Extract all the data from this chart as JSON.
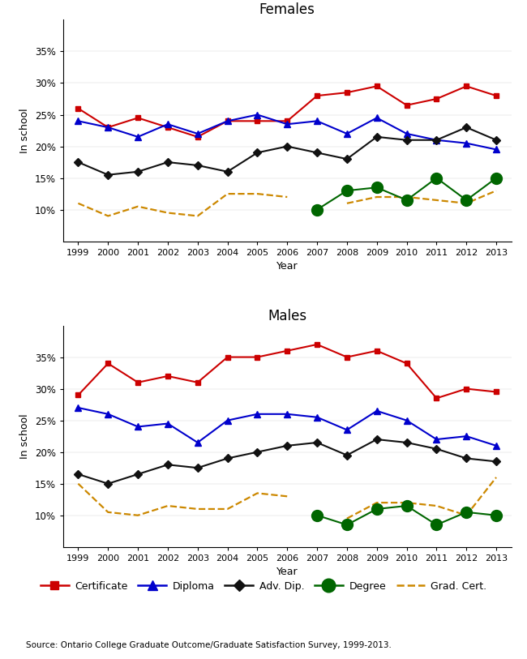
{
  "years": [
    1999,
    2000,
    2001,
    2002,
    2003,
    2004,
    2005,
    2006,
    2007,
    2008,
    2009,
    2010,
    2011,
    2012,
    2013
  ],
  "females": {
    "certificate": [
      26,
      23,
      24.5,
      23,
      21.5,
      24,
      24,
      24,
      28,
      28.5,
      29.5,
      26.5,
      27.5,
      29.5,
      28
    ],
    "diploma": [
      24,
      23,
      21.5,
      23.5,
      22,
      24,
      25,
      23.5,
      24,
      22,
      24.5,
      22,
      21,
      20.5,
      19.5
    ],
    "adv_dip": [
      17.5,
      15.5,
      16,
      17.5,
      17,
      16,
      19,
      20,
      19,
      18,
      21.5,
      21,
      21,
      23,
      21
    ],
    "degree": [
      null,
      null,
      null,
      null,
      null,
      null,
      null,
      null,
      10,
      13,
      13.5,
      11.5,
      15,
      11.5,
      15
    ],
    "grad_cert": [
      11,
      9,
      10.5,
      9.5,
      9,
      12.5,
      12.5,
      12,
      null,
      11,
      12,
      12,
      11.5,
      11,
      13
    ]
  },
  "males": {
    "certificate": [
      29,
      34,
      31,
      32,
      31,
      35,
      35,
      36,
      37,
      35,
      36,
      34,
      28.5,
      30,
      29.5
    ],
    "diploma": [
      27,
      26,
      24,
      24.5,
      21.5,
      25,
      26,
      26,
      25.5,
      23.5,
      26.5,
      25,
      22,
      22.5,
      21
    ],
    "adv_dip": [
      16.5,
      15,
      16.5,
      18,
      17.5,
      19,
      20,
      21,
      21.5,
      19.5,
      22,
      21.5,
      20.5,
      19,
      18.5
    ],
    "degree": [
      null,
      null,
      null,
      null,
      null,
      null,
      null,
      null,
      10,
      8.5,
      11,
      11.5,
      8.5,
      10.5,
      10
    ],
    "grad_cert": [
      15,
      10.5,
      10,
      11.5,
      11,
      11,
      13.5,
      13,
      null,
      9.5,
      12,
      12,
      11.5,
      10,
      16
    ]
  },
  "colors": {
    "certificate": "#cc0000",
    "diploma": "#0000cc",
    "adv_dip": "#111111",
    "degree": "#006600",
    "grad_cert": "#cc8800"
  },
  "ylim": [
    5,
    40
  ],
  "yticks": [
    10,
    15,
    20,
    25,
    30,
    35
  ],
  "xlabel": "Year",
  "ylabel": "In school",
  "title_females": "Females",
  "title_males": "Males",
  "source_text": "Source: Ontario College Graduate Outcome/Graduate Satisfaction Survey, 1999-2013.",
  "legend_labels": [
    "Certificate",
    "Diploma",
    "Adv. Dip.",
    "Degree",
    "Grad. Cert."
  ]
}
